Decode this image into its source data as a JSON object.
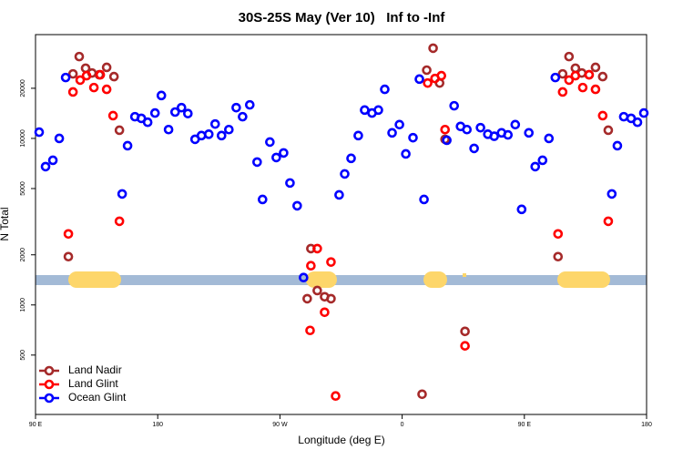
{
  "chart_data": {
    "type": "scatter",
    "title": "30S-25S May (Ver 10)   Inf to -Inf",
    "x_label": "Longitude (deg E)",
    "y_label": "N Total",
    "xlim": [
      90,
      540
    ],
    "ylim": [
      220,
      42000
    ],
    "yscale": "log",
    "xticks": [
      {
        "value": 90,
        "label": "90 E"
      },
      180,
      {
        "value": 270,
        "label": "90 W"
      },
      {
        "value": 360,
        "label": "0"
      },
      {
        "value": 450,
        "label": "90 E"
      },
      {
        "value": 540,
        "label": "180"
      }
    ],
    "yticks": [
      500,
      1000,
      2000,
      5000,
      10000,
      20000
    ],
    "legend": "bottom-left",
    "series": [
      {
        "name": "Land Nadir",
        "color": "#a52a2a",
        "x": [
          114.2,
          117.6,
          122.2,
          126.9,
          131.6,
          137,
          142.4,
          147.8,
          151.8,
          290.1,
          292.8,
          297.5,
          302.9,
          307.6,
          374.7,
          378.1,
          382.8,
          387.6,
          391.6,
          406.3,
          474.8,
          478.2,
          482.9,
          487.6,
          492.3,
          497.7,
          502.4,
          507.7,
          511.8
        ],
        "values": [
          1950,
          24400,
          31000,
          26400,
          24700,
          24100,
          26700,
          23500,
          11200,
          1090,
          2180,
          1220,
          1120,
          1090,
          291,
          25700,
          34800,
          21500,
          9880,
          694,
          1950,
          24400,
          31000,
          26400,
          24700,
          24100,
          26700,
          23500,
          11200
        ]
      },
      {
        "name": "Land Glint",
        "color": "#ff0000",
        "x": [
          114.2,
          117.6,
          122.9,
          127.6,
          133,
          137.7,
          142.4,
          147.1,
          151.8,
          292.2,
          292.8,
          297.5,
          302.9,
          307.6,
          311,
          378.8,
          384.2,
          388.9,
          391.6,
          406.3,
          474.8,
          478.2,
          482.9,
          487.6,
          493,
          497.7,
          502.4,
          507.7,
          511.8
        ],
        "values": [
          2670,
          19000,
          22400,
          23800,
          20200,
          24100,
          19700,
          13700,
          3180,
          703,
          1720,
          2180,
          904,
          1810,
          284,
          21500,
          22900,
          23800,
          11300,
          568,
          2670,
          19000,
          22400,
          23800,
          20200,
          24100,
          19700,
          13700,
          3180
        ]
      },
      {
        "name": "Ocean Glint",
        "color": "#0000ff",
        "x": [
          92.7,
          97.4,
          102.8,
          107.5,
          112.2,
          153.8,
          157.8,
          163.2,
          167.9,
          172.6,
          178,
          182.7,
          188,
          192.8,
          197.5,
          202.2,
          207.5,
          212.2,
          217.6,
          222.3,
          227,
          232.4,
          237.8,
          242.5,
          247.8,
          253.2,
          257.2,
          262.6,
          267.3,
          272.7,
          277.4,
          282.7,
          287.4,
          313.6,
          317.7,
          322.4,
          327.7,
          332.4,
          337.8,
          342.5,
          347.2,
          352.6,
          358,
          362.7,
          368,
          372.7,
          376.1,
          392.9,
          398.3,
          403,
          407.7,
          413,
          417.7,
          423.1,
          427.8,
          433.2,
          437.9,
          443.3,
          448,
          453.3,
          458,
          463.4,
          468.1,
          472.8,
          514.4,
          518.5,
          523.2,
          528.6,
          533.3,
          538
        ],
        "values": [
          10900,
          6770,
          7390,
          10000,
          23200,
          4640,
          9040,
          13500,
          13200,
          12500,
          14200,
          18100,
          11300,
          14400,
          15300,
          14100,
          9880,
          10400,
          10600,
          12200,
          10400,
          11300,
          15300,
          13500,
          15900,
          7210,
          4300,
          9510,
          7680,
          8180,
          5400,
          3940,
          1460,
          4580,
          6120,
          7590,
          10400,
          14800,
          14200,
          14800,
          19700,
          10800,
          12100,
          8070,
          10100,
          22700,
          4300,
          9750,
          15700,
          11800,
          11300,
          8710,
          11600,
          10600,
          10300,
          10800,
          10500,
          12100,
          3750,
          10800,
          6770,
          7390,
          10000,
          23200,
          4640,
          9040,
          13500,
          13200,
          12500,
          14200
        ]
      }
    ]
  }
}
